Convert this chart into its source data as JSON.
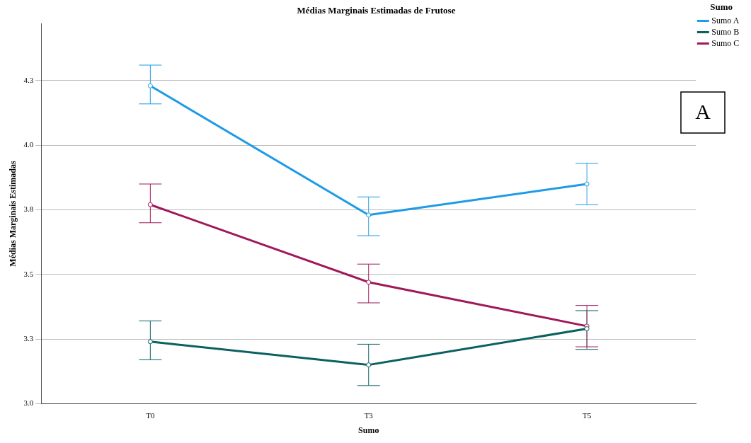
{
  "chart_data": {
    "type": "line",
    "title": "Médias Marginais Estimadas de Frutose",
    "xlabel": "Sumo",
    "ylabel": "Médias Marginais Estimadas",
    "legend_title": "Sumo",
    "categories": [
      "T0",
      "T3",
      "T5"
    ],
    "series": [
      {
        "name": "Sumo A",
        "color": "#1f9be6",
        "values": [
          4.23,
          3.73,
          3.85
        ],
        "errors": [
          [
            4.16,
            4.31
          ],
          [
            3.65,
            3.8
          ],
          [
            3.77,
            3.93
          ]
        ]
      },
      {
        "name": "Sumo B",
        "color": "#0b6060",
        "values": [
          3.24,
          3.15,
          3.29
        ],
        "errors": [
          [
            3.17,
            3.32
          ],
          [
            3.07,
            3.23
          ],
          [
            3.21,
            3.36
          ]
        ]
      },
      {
        "name": "Sumo C",
        "color": "#a0185a",
        "values": [
          3.77,
          3.47,
          3.3
        ],
        "errors": [
          [
            3.7,
            3.85
          ],
          [
            3.39,
            3.54
          ],
          [
            3.22,
            3.38
          ]
        ]
      }
    ],
    "ylim": [
      3.0,
      4.47
    ],
    "yticks": [
      {
        "value": 3.0,
        "label": "3.0"
      },
      {
        "value": 3.25,
        "label": "3.3"
      },
      {
        "value": 3.5,
        "label": "3.5"
      },
      {
        "value": 3.75,
        "label": "3.8"
      },
      {
        "value": 4.0,
        "label": "4.0"
      },
      {
        "value": 4.25,
        "label": "4.3"
      }
    ],
    "grid": "y",
    "legend": "top right",
    "marker": "circle",
    "line_style": "solid",
    "annotations": [
      "A"
    ]
  }
}
